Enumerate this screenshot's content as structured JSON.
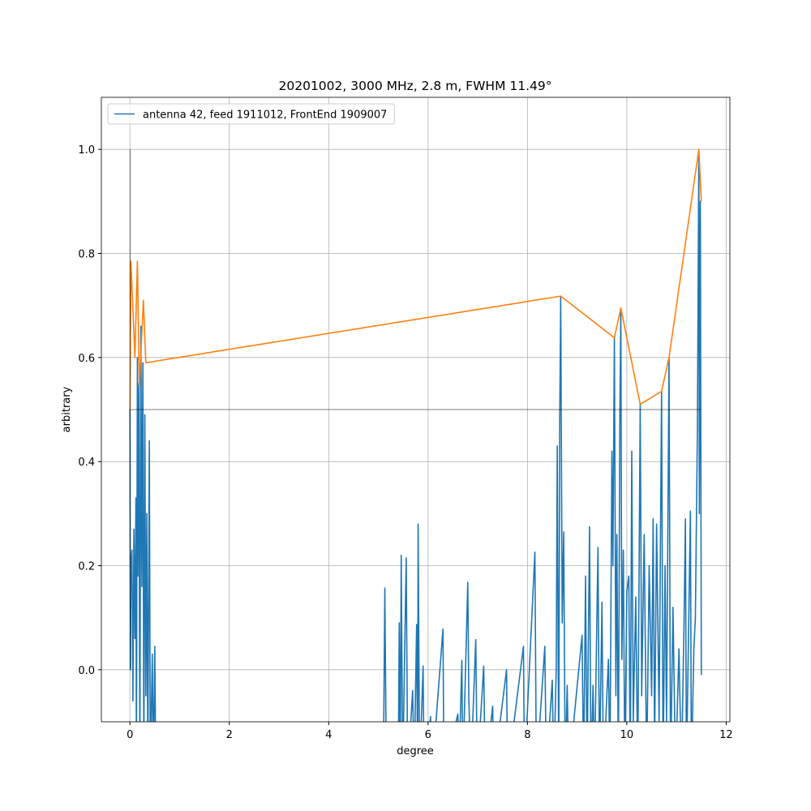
{
  "chart_data": {
    "type": "line",
    "title": "20201002, 3000 MHz, 2.8 m, FWHM 11.49°",
    "xlabel": "degree",
    "ylabel": "arbitrary",
    "xlim": [
      -0.575,
      12.075
    ],
    "ylim": [
      -0.1,
      1.1
    ],
    "xticks": [
      0,
      2,
      4,
      6,
      8,
      10,
      12
    ],
    "yticks": [
      {
        "value": 0,
        "label": "0.0"
      },
      0.2,
      0.4,
      0.6,
      0.8,
      {
        "value": 1,
        "label": "1.0"
      }
    ],
    "grid": true,
    "legend": "upper left",
    "series": [
      {
        "name": "antenna 42, feed 1911012, FrontEnd 1909007",
        "color": "#1f77b4",
        "x": [
          0,
          0.01,
          0.02,
          0.04,
          0.06,
          0.08,
          0.1,
          0.12,
          0.13,
          0.15,
          0.16,
          0.18,
          0.2,
          0.22,
          0.24,
          0.26,
          0.28,
          0.3,
          0.32,
          0.34,
          0.36,
          0.39,
          0.41,
          0.45,
          0.47,
          0.5,
          0.52,
          5.1,
          5.13,
          5.16,
          5.4,
          5.42,
          5.44,
          5.46,
          5.49,
          5.56,
          5.59,
          5.69,
          5.72,
          5.77,
          5.79,
          5.8,
          5.83,
          5.9,
          5.92,
          6.05,
          6.08,
          6.3,
          6.32,
          6.6,
          6.62,
          6.68,
          6.7,
          6.8,
          6.82,
          6.86,
          6.96,
          6.99,
          7.12,
          7.15,
          7.3,
          7.32,
          7.58,
          7.6,
          7.92,
          7.94,
          8.15,
          8.18,
          8.35,
          8.38,
          8.5,
          8.53,
          8.58,
          8.6,
          8.63,
          8.65,
          8.67,
          8.7,
          8.73,
          8.76,
          8.8,
          8.83,
          9.1,
          9.13,
          9.17,
          9.2,
          9.25,
          9.28,
          9.32,
          9.35,
          9.42,
          9.45,
          9.5,
          9.53,
          9.63,
          9.66,
          9.7,
          9.72,
          9.75,
          9.78,
          9.8,
          9.83,
          9.86,
          9.88,
          9.9,
          9.93,
          9.96,
          10.0,
          10.04,
          10.07,
          10.1,
          10.13,
          10.18,
          10.22,
          10.27,
          10.3,
          10.35,
          10.4,
          10.45,
          10.5,
          10.53,
          10.56,
          10.6,
          10.65,
          10.7,
          10.73,
          10.77,
          10.8,
          10.85,
          10.88,
          10.93,
          10.98,
          11.05,
          11.1,
          11.15,
          11.18,
          11.2,
          11.28,
          11.3,
          11.35,
          11.38,
          11.42,
          11.45,
          11.46,
          11.48,
          11.5
        ],
        "values": [
          0.5,
          0,
          0.2,
          0.23,
          -0.06,
          0.27,
          0.06,
          0.33,
          -0.2,
          0.6,
          0.18,
          0.55,
          -0.2,
          0.66,
          0.16,
          0.59,
          -0.2,
          0.49,
          -0.05,
          0.3,
          -0.2,
          0.44,
          -0.2,
          0.03,
          -0.2,
          0.045,
          -0.2,
          -0.2,
          0.157,
          -0.2,
          -0.2,
          0.09,
          -0.2,
          0.22,
          -0.2,
          0.215,
          -0.2,
          -0.04,
          -0.2,
          0.087,
          -0.2,
          0.28,
          -0.2,
          0.007,
          -0.2,
          -0.09,
          -0.2,
          0.078,
          -0.2,
          -0.085,
          -0.2,
          0.018,
          -0.2,
          0.168,
          -0.05,
          -0.2,
          0.058,
          -0.2,
          0.007,
          -0.2,
          -0.07,
          -0.2,
          0,
          -0.2,
          0.045,
          -0.2,
          0.226,
          -0.2,
          0.045,
          -0.2,
          -0.02,
          -0.2,
          0.005,
          0.43,
          -0.2,
          0.48,
          0.718,
          0.09,
          0.265,
          -0.2,
          -0.03,
          -0.2,
          0.066,
          -0.2,
          0.18,
          -0.2,
          0.275,
          -0.2,
          -0.03,
          -0.2,
          0.235,
          -0.2,
          0.13,
          -0.2,
          0.02,
          -0.2,
          0.42,
          0.2,
          0.638,
          -0.05,
          0.26,
          -0.2,
          0.485,
          0.695,
          0.02,
          0.23,
          -0.2,
          0.15,
          0.18,
          -0.2,
          0.42,
          -0.1,
          0.14,
          -0.2,
          0.51,
          -0.05,
          0.26,
          -0.2,
          0.2,
          -0.05,
          0.29,
          -0.15,
          0.28,
          -0.1,
          0.535,
          -0.2,
          0.2,
          -0.1,
          0.6,
          -0.2,
          0.12,
          -0.2,
          0.04,
          -0.2,
          0.08,
          0.29,
          -0.2,
          0.305,
          -0.2,
          0.04,
          0.1,
          0.45,
          1.0,
          0.3,
          0.9,
          -0.01
        ]
      },
      {
        "color": "#ff7f0e",
        "x": [
          0,
          0.02,
          0.1,
          0.15,
          0.19,
          0.27,
          0.32,
          8.67,
          9.75,
          9.88,
          10.27,
          10.7,
          10.85,
          11.45,
          11.5
        ],
        "values": [
          0.5,
          0.785,
          0.6,
          0.785,
          0.545,
          0.71,
          0.59,
          0.718,
          0.638,
          0.695,
          0.51,
          0.535,
          0.6,
          1.0,
          0.9
        ]
      }
    ],
    "vlines": [
      {
        "x": 0,
        "ymin": 0,
        "ymax": 1,
        "color": "#000000"
      }
    ],
    "hlines": [
      {
        "y": 0.5,
        "xmin": 0,
        "xmax": 11.49,
        "color": "#000000"
      }
    ]
  }
}
